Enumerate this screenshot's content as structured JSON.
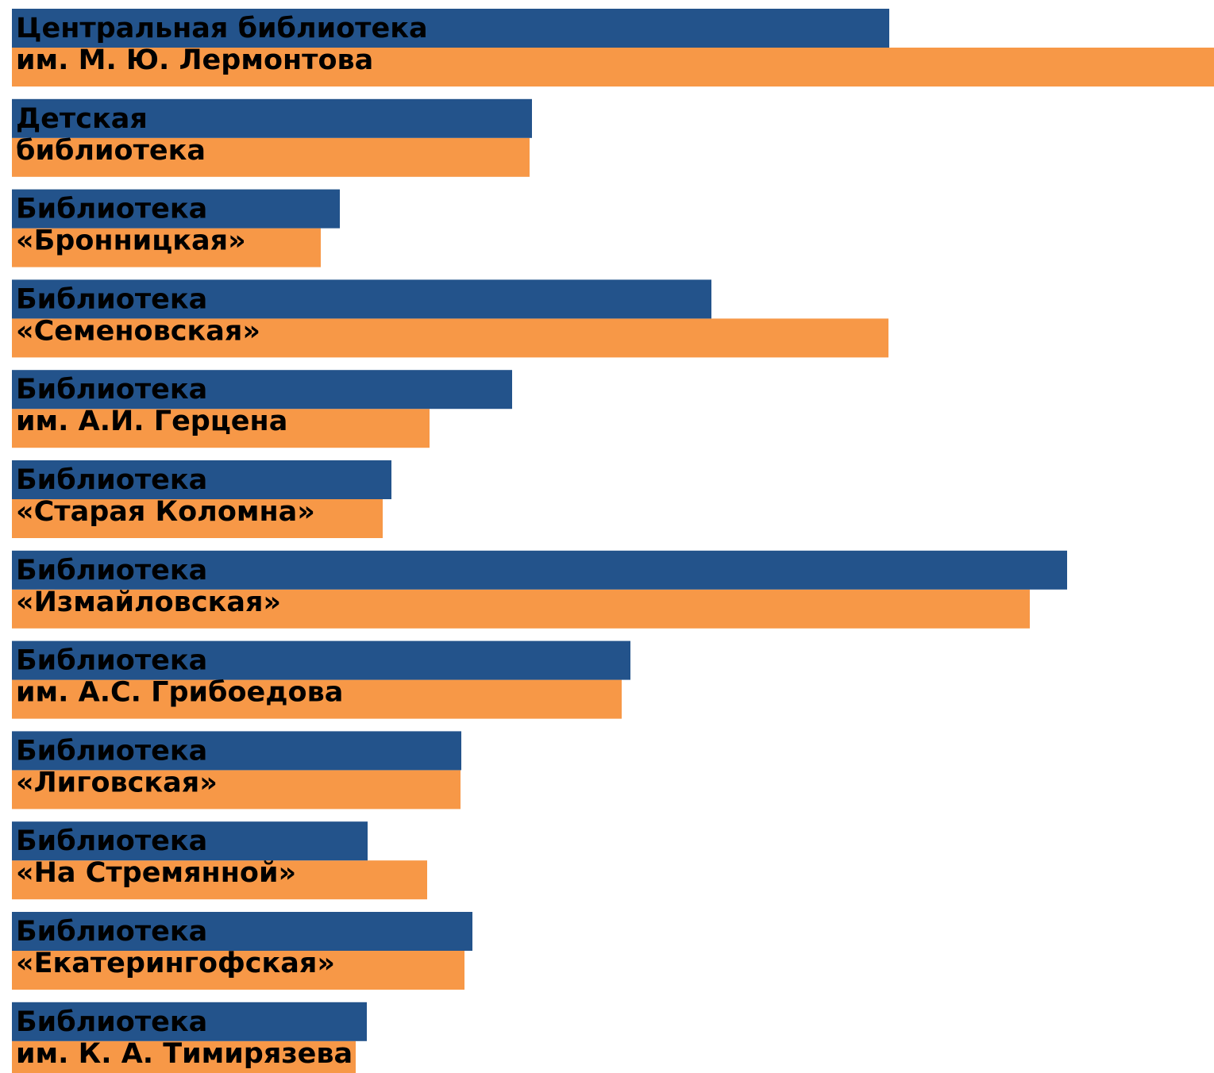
{
  "chart_data": {
    "type": "bar",
    "orientation": "horizontal",
    "colors": [
      "#23538b",
      "#f79847"
    ],
    "categories": [
      {
        "line1": "Центральная библиотека",
        "line2": "им. М. Ю. Лермонтова"
      },
      {
        "line1": "Детская",
        "line2": "библиотека"
      },
      {
        "line1": "Библиотека",
        "line2": "«Бронницкая»"
      },
      {
        "line1": "Библиотека",
        "line2": "«Семеновская»"
      },
      {
        "line1": "Библиотека",
        "line2": "им. А.И. Герцена"
      },
      {
        "line1": "Библиотека",
        "line2": "«Старая Коломна»"
      },
      {
        "line1": "Библиотека",
        "line2": "«Измайловская»"
      },
      {
        "line1": "Библиотека",
        "line2": "им. А.С. Грибоедова"
      },
      {
        "line1": "Библиотека",
        "line2": "«Лиговская»"
      },
      {
        "line1": "Библиотека",
        "line2": "«На Стремянной»"
      },
      {
        "line1": "Библиотека",
        "line2": "«Екатерингофская»"
      },
      {
        "line1": "Библиотека",
        "line2": "им. К. А. Тимирязева"
      }
    ],
    "series": [
      {
        "values": [
          1105,
          655,
          413,
          881,
          630,
          478,
          1329,
          779,
          566,
          448,
          580,
          447
        ]
      },
      {
        "values": [
          1514,
          652,
          389,
          1104,
          526,
          467,
          1282,
          768,
          565,
          523,
          570,
          433
        ]
      }
    ],
    "xlim": [
      0,
      1514
    ]
  }
}
